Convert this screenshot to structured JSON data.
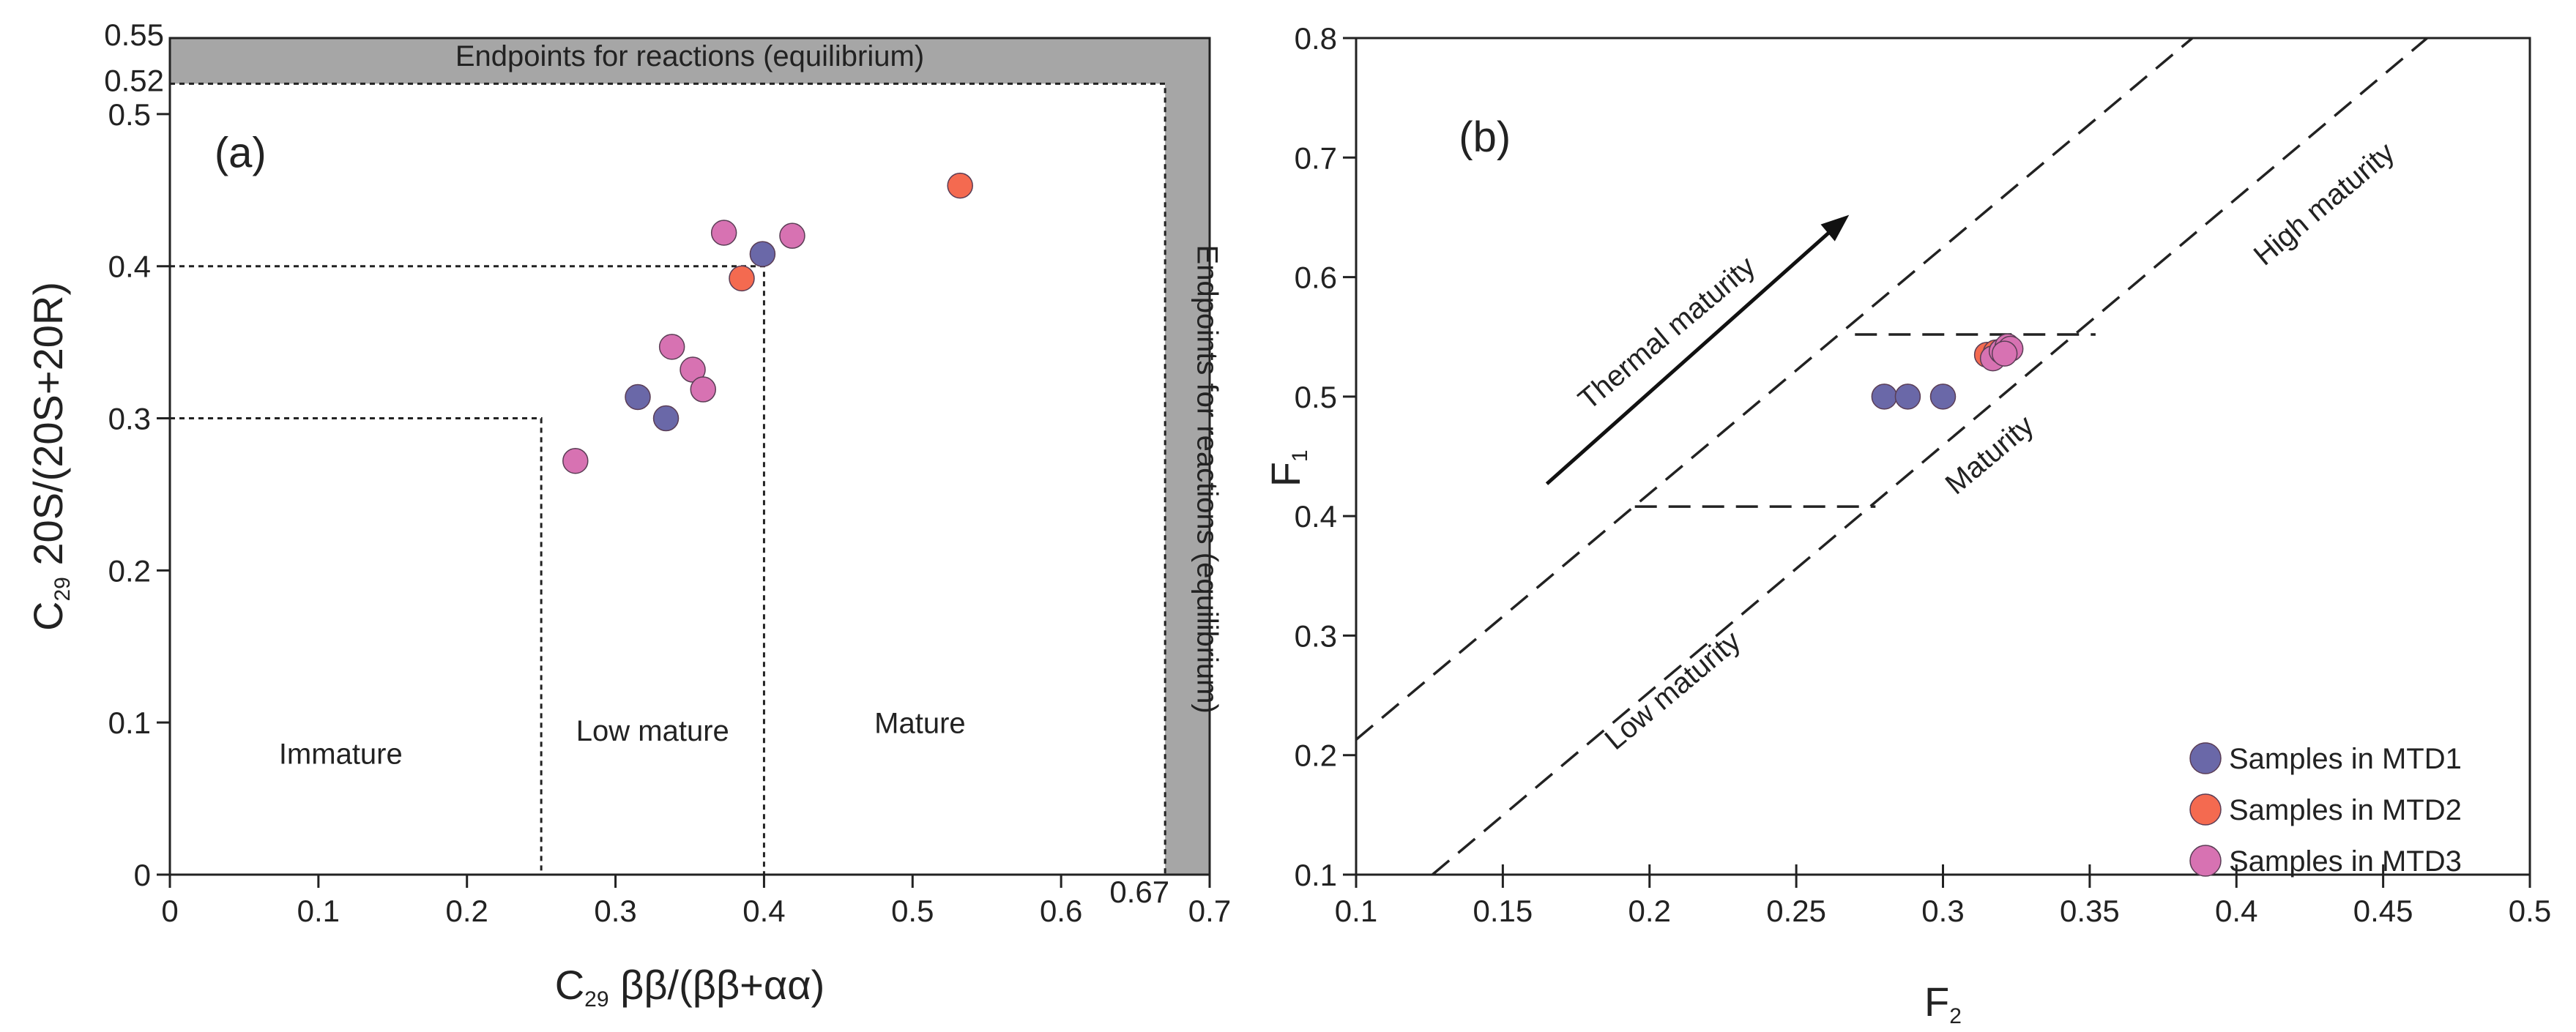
{
  "chart_data": [
    {
      "type": "scatter",
      "panel_label": "(a)",
      "xlabel": {
        "prefix": "C",
        "sub": "29",
        "text": " ββ/(ββ+αα)"
      },
      "ylabel": {
        "prefix": "C",
        "sub": "29",
        "text": " 20S/(20S+20R)"
      },
      "xlim": [
        0,
        0.7
      ],
      "ylim": [
        0,
        0.55
      ],
      "x_ticks": [
        0,
        0.1,
        0.2,
        0.3,
        0.4,
        0.5,
        0.6,
        0.7
      ],
      "x_tick_labels": [
        "0",
        "0.1",
        "0.2",
        "0.3",
        "0.4",
        "0.5",
        "0.6",
        "0.7"
      ],
      "y_ticks": [
        0,
        0.1,
        0.2,
        0.3,
        0.4,
        0.5
      ],
      "y_tick_labels": [
        "0",
        "0.1",
        "0.2",
        "0.3",
        "0.4",
        "0.5"
      ],
      "extra_labels": {
        "x_067": "0.67",
        "y_052": "0.52",
        "y_055": "0.55"
      },
      "regions": {
        "immature": "Immature",
        "low_mature": "Low mature",
        "mature": "Mature",
        "endpoint_top": "Endpoints for reactions (equilibrium)",
        "endpoint_right": "Endpoints for reactions (equilibrium)"
      },
      "boundaries": {
        "immature": [
          0.25,
          0.3
        ],
        "low_mature": [
          0.4,
          0.4
        ],
        "equilibrium": [
          0.67,
          0.52
        ]
      },
      "series": [
        {
          "group": "MTD1",
          "color": "#6a68a8",
          "points": [
            [
              0.315,
              0.314
            ],
            [
              0.334,
              0.3
            ],
            [
              0.399,
              0.408
            ]
          ]
        },
        {
          "group": "MTD2",
          "color": "#f46a50",
          "points": [
            [
              0.385,
              0.392
            ],
            [
              0.532,
              0.453
            ]
          ]
        },
        {
          "group": "MTD3",
          "color": "#d772b2",
          "points": [
            [
              0.273,
              0.272
            ],
            [
              0.338,
              0.347
            ],
            [
              0.352,
              0.332
            ],
            [
              0.359,
              0.319
            ],
            [
              0.373,
              0.422
            ],
            [
              0.419,
              0.42
            ]
          ]
        }
      ]
    },
    {
      "type": "scatter",
      "panel_label": "(b)",
      "xlabel": {
        "prefix": "F",
        "sub": "2"
      },
      "ylabel": {
        "prefix": "F",
        "sub": "1"
      },
      "xlim": [
        0.1,
        0.5
      ],
      "ylim": [
        0.1,
        0.8
      ],
      "x_ticks": [
        0.1,
        0.15,
        0.2,
        0.25,
        0.3,
        0.35,
        0.4,
        0.45,
        0.5
      ],
      "x_tick_labels": [
        "0.1",
        "0.15",
        "0.2",
        "0.25",
        "0.3",
        "0.35",
        "0.4",
        "0.45",
        "0.5"
      ],
      "y_ticks": [
        0.1,
        0.2,
        0.3,
        0.4,
        0.5,
        0.6,
        0.7,
        0.8
      ],
      "y_tick_labels": [
        "0.1",
        "0.2",
        "0.3",
        "0.4",
        "0.5",
        "0.6",
        "0.7",
        "0.8"
      ],
      "regions": {
        "thermal": "Thermal maturity",
        "low": "Low maturity",
        "maturity": "Maturity",
        "high": "High maturity"
      },
      "lines": [
        {
          "from": [
            0.1,
            0.213
          ],
          "to": [
            0.385,
            0.8
          ]
        },
        {
          "from": [
            0.126,
            0.1
          ],
          "to": [
            0.465,
            0.8
          ]
        }
      ],
      "segments": [
        {
          "from": [
            0.195,
            0.408
          ],
          "to": [
            0.277,
            0.408
          ]
        },
        {
          "from": [
            0.27,
            0.552
          ],
          "to": [
            0.352,
            0.552
          ]
        }
      ],
      "series": [
        {
          "group": "MTD1",
          "color": "#6a68a8",
          "points": [
            [
              0.28,
              0.5
            ],
            [
              0.288,
              0.5
            ],
            [
              0.3,
              0.5
            ]
          ]
        },
        {
          "group": "MTD2",
          "color": "#f46a50",
          "points": [
            [
              0.315,
              0.535
            ],
            [
              0.318,
              0.537
            ]
          ]
        },
        {
          "group": "MTD3",
          "color": "#d772b2",
          "points": [
            [
              0.317,
              0.532
            ],
            [
              0.32,
              0.538
            ],
            [
              0.322,
              0.542
            ],
            [
              0.323,
              0.54
            ],
            [
              0.321,
              0.536
            ]
          ]
        }
      ],
      "legend": [
        {
          "label": "Samples in MTD1",
          "color": "#6a68a8"
        },
        {
          "label": "Samples in MTD2",
          "color": "#f46a50"
        },
        {
          "label": "Samples in MTD3",
          "color": "#d772b2"
        }
      ],
      "legend_position": "bottom-right"
    }
  ]
}
